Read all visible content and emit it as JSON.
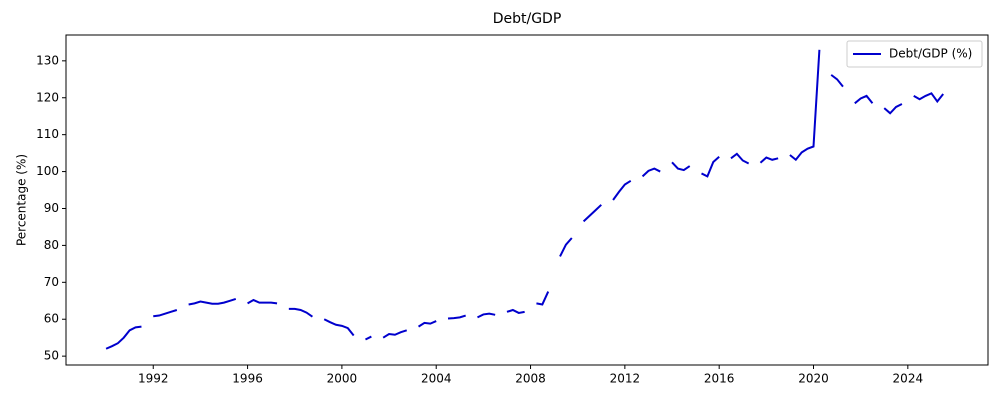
{
  "chart_data": {
    "type": "line",
    "title": "Debt/GDP",
    "ylabel": "Percentage (%)",
    "x": [
      1990,
      1990.25,
      1990.5,
      1990.75,
      1991,
      1991.25,
      1991.5,
      1991.75,
      1992,
      1992.25,
      1992.5,
      1992.75,
      1993,
      1993.25,
      1993.5,
      1993.75,
      1994,
      1994.25,
      1994.5,
      1994.75,
      1995,
      1995.25,
      1995.5,
      1995.75,
      1996,
      1996.25,
      1996.5,
      1996.75,
      1997,
      1997.25,
      1997.5,
      1997.75,
      1998,
      1998.25,
      1998.5,
      1998.75,
      1999,
      1999.25,
      1999.5,
      1999.75,
      2000,
      2000.25,
      2000.5,
      2000.75,
      2001,
      2001.25,
      2001.5,
      2001.75,
      2002,
      2002.25,
      2002.5,
      2002.75,
      2003,
      2003.25,
      2003.5,
      2003.75,
      2004,
      2004.25,
      2004.5,
      2004.75,
      2005,
      2005.25,
      2005.5,
      2005.75,
      2006,
      2006.25,
      2006.5,
      2006.75,
      2007,
      2007.25,
      2007.5,
      2007.75,
      2008,
      2008.25,
      2008.5,
      2008.75,
      2009,
      2009.25,
      2009.5,
      2009.75,
      2010,
      2010.25,
      2010.5,
      2010.75,
      2011,
      2011.25,
      2011.5,
      2011.75,
      2012,
      2012.25,
      2012.5,
      2012.75,
      2013,
      2013.25,
      2013.5,
      2013.75,
      2014,
      2014.25,
      2014.5,
      2014.75,
      2015,
      2015.25,
      2015.5,
      2015.75,
      2016,
      2016.25,
      2016.5,
      2016.75,
      2017,
      2017.25,
      2017.5,
      2017.75,
      2018,
      2018.25,
      2018.5,
      2018.75,
      2019,
      2019.25,
      2019.5,
      2019.75,
      2020,
      2020.25,
      2020.5,
      2020.75,
      2021,
      2021.25,
      2021.5,
      2021.75,
      2022,
      2022.25,
      2022.5,
      2022.75,
      2023,
      2023.25,
      2023.5,
      2023.75,
      2024,
      2024.25,
      2024.5,
      2024.75,
      2025,
      2025.25,
      2025.5
    ],
    "series": [
      {
        "name": "Debt/GDP (%)",
        "color": "#0000cd",
        "values": [
          52,
          52.7,
          53.5,
          55,
          57,
          57.8,
          58,
          null,
          60.8,
          61,
          61.5,
          62,
          62.5,
          null,
          64,
          64.3,
          64.8,
          64.5,
          64.2,
          64.2,
          64.5,
          65,
          65.5,
          null,
          64.3,
          65.2,
          64.5,
          64.5,
          64.5,
          64.3,
          null,
          62.8,
          62.8,
          62.5,
          61.8,
          60.7,
          null,
          60,
          59.2,
          58.5,
          58.2,
          57.6,
          55.6,
          null,
          54.5,
          55.3,
          null,
          55,
          56,
          55.8,
          56.5,
          57,
          null,
          58,
          59,
          58.8,
          59.5,
          null,
          60.2,
          60.3,
          60.5,
          61,
          null,
          60.5,
          61.3,
          61.5,
          61.2,
          null,
          62,
          62.5,
          61.7,
          62,
          null,
          64.3,
          64,
          67.5,
          null,
          77,
          80.2,
          82,
          null,
          86.5,
          88,
          89.5,
          91,
          null,
          92.3,
          94.5,
          96.5,
          97.5,
          null,
          98.7,
          100.2,
          100.8,
          100,
          null,
          102.5,
          100.8,
          100.4,
          101.5,
          null,
          99.5,
          98.7,
          102.6,
          104,
          null,
          103.6,
          104.8,
          103,
          102.2,
          null,
          102.4,
          103.8,
          103.2,
          103.6,
          null,
          104.5,
          103.2,
          105.2,
          106.2,
          106.8,
          133,
          null,
          126.2,
          125,
          123,
          null,
          118.5,
          119.8,
          120.5,
          118.5,
          null,
          117.2,
          115.8,
          117.5,
          118.3,
          null,
          120.5,
          119.6,
          120.5,
          121.2,
          119,
          121
        ]
      }
    ],
    "xlim": [
      1988.3,
      2027.4
    ],
    "ylim": [
      47.6,
      137.0
    ],
    "xticks": [
      1992,
      1996,
      2000,
      2004,
      2008,
      2012,
      2016,
      2020,
      2024
    ],
    "yticks": [
      50,
      60,
      70,
      80,
      90,
      100,
      110,
      120,
      130
    ],
    "grid": false,
    "legend": "upper right"
  }
}
